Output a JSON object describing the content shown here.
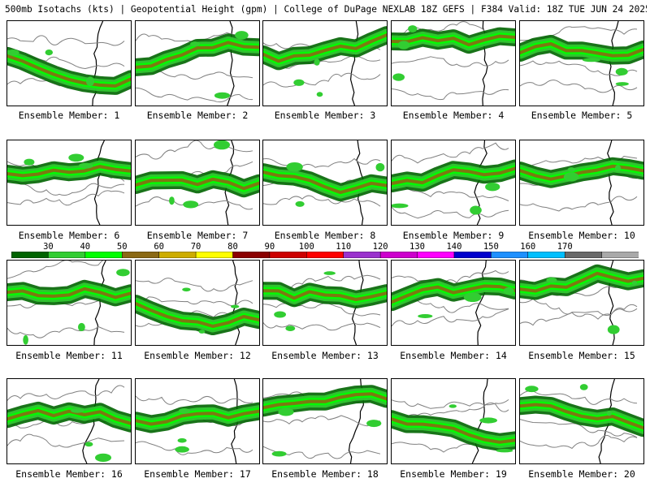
{
  "title": "500mb Isotachs (kts) | Geopotential Height (gpm) | College of DuPage NEXLAB   18Z GEFS | F384 Valid: 18Z TUE JUN 24 2025",
  "colorbar": {
    "ticks": [
      "30",
      "40",
      "50",
      "60",
      "70",
      "80",
      "90",
      "100",
      "110",
      "120",
      "130",
      "140",
      "150",
      "160",
      "170"
    ],
    "colors": [
      "#006400",
      "#32cd32",
      "#00ff00",
      "#8b6914",
      "#cdad00",
      "#ffff00",
      "#8b0000",
      "#cd0000",
      "#ff0000",
      "#9a32cd",
      "#cd00cd",
      "#ff00ff",
      "#0000cd",
      "#1e90ff",
      "#00bfff",
      "#696969",
      "#a9a9a9"
    ]
  },
  "members": [
    {
      "label": "Ensemble Member: 1"
    },
    {
      "label": "Ensemble Member: 2"
    },
    {
      "label": "Ensemble Member: 3"
    },
    {
      "label": "Ensemble Member: 4"
    },
    {
      "label": "Ensemble Member: 5"
    },
    {
      "label": "Ensemble Member: 6"
    },
    {
      "label": "Ensemble Member: 7"
    },
    {
      "label": "Ensemble Member: 8"
    },
    {
      "label": "Ensemble Member: 9"
    },
    {
      "label": "Ensemble Member: 10"
    },
    {
      "label": "Ensemble Member: 11"
    },
    {
      "label": "Ensemble Member: 12"
    },
    {
      "label": "Ensemble Member: 13"
    },
    {
      "label": "Ensemble Member: 14"
    },
    {
      "label": "Ensemble Member: 15"
    },
    {
      "label": "Ensemble Member: 16"
    },
    {
      "label": "Ensemble Member: 17"
    },
    {
      "label": "Ensemble Member: 18"
    },
    {
      "label": "Ensemble Member: 19"
    },
    {
      "label": "Ensemble Member: 20"
    }
  ]
}
